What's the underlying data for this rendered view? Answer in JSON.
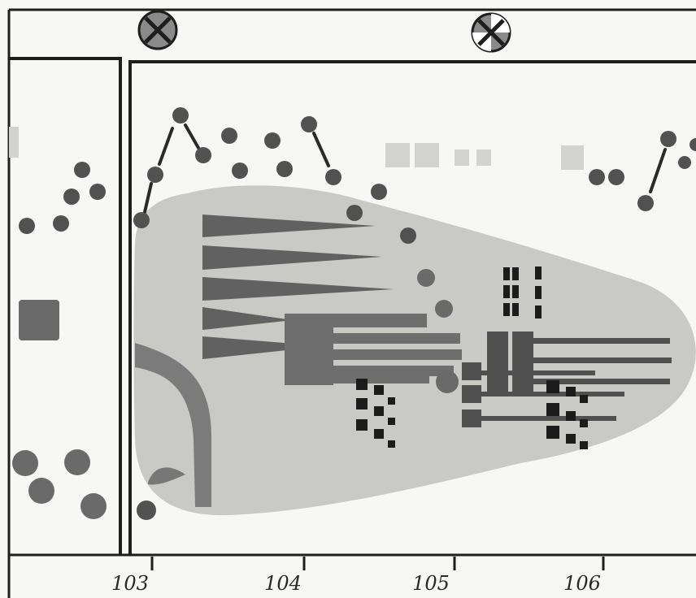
{
  "axis": {
    "ticks": [
      {
        "label": "103",
        "value": 103
      },
      {
        "label": "104",
        "value": 104
      },
      {
        "label": "105",
        "value": 105
      },
      {
        "label": "106",
        "value": 106
      }
    ]
  },
  "markers": [
    {
      "name": "crossed-circle-marker-left",
      "icon": "crossed-circle-icon"
    },
    {
      "name": "crossed-circle-marker-right",
      "icon": "crossed-circle-icon"
    }
  ],
  "colors": {
    "background": "#f7f7f5",
    "frame": "#1e1e1e",
    "blob": "#c9c9c5",
    "dot": "#515151",
    "dot_mid": "#6a6a6a",
    "wedge": "#616161",
    "square_light": "#d2d2cf",
    "square_dark": "#1c1c1c",
    "marker_fill": "#8a8a8a"
  }
}
